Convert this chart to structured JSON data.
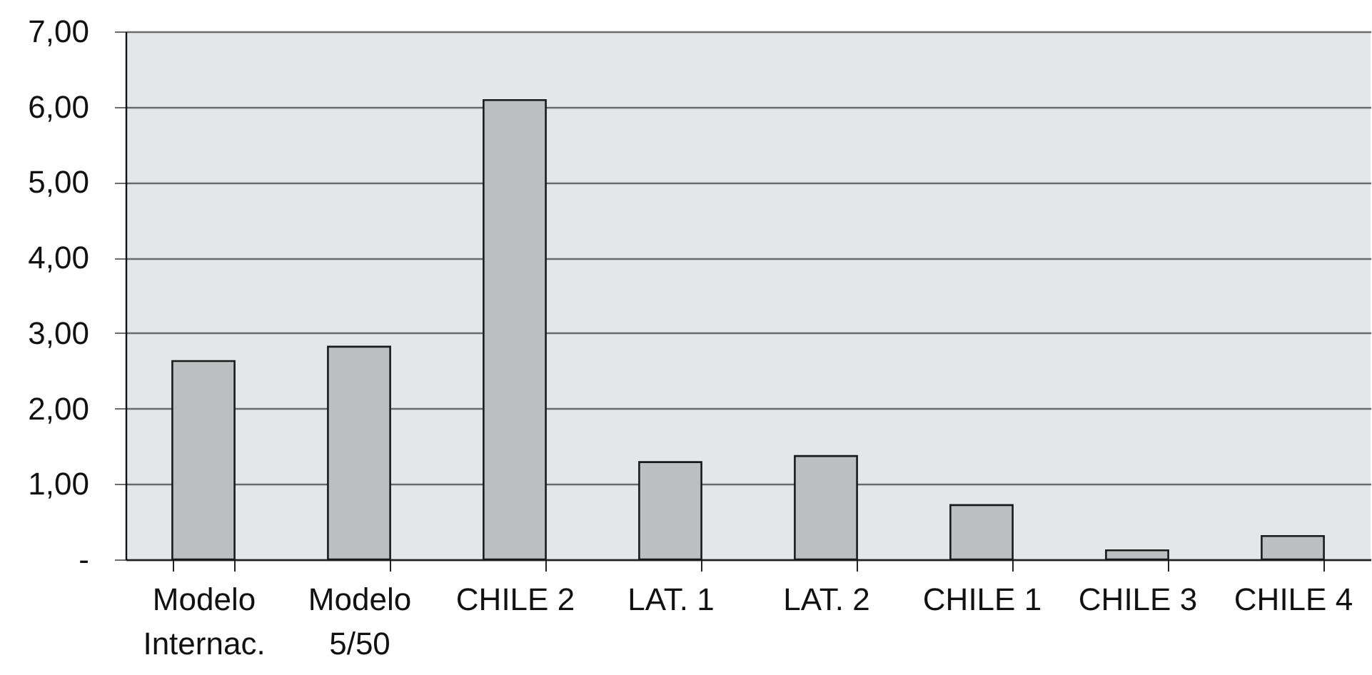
{
  "chart_data": {
    "type": "bar",
    "categories": [
      "Modelo\nInternac.",
      "Modelo\n5/50",
      "CHILE 2",
      "LAT. 1",
      "LAT. 2",
      "CHILE 1",
      "CHILE 3",
      "CHILE 4"
    ],
    "values": [
      2.63,
      2.82,
      6.09,
      1.29,
      1.37,
      0.72,
      0.12,
      0.31
    ],
    "color": "#bdbec1",
    "ylim": [
      0,
      7
    ],
    "yticks": [
      {
        "value": 0,
        "label": "-"
      },
      {
        "value": 1,
        "label": "1,00"
      },
      {
        "value": 2,
        "label": "2,00"
      },
      {
        "value": 3,
        "label": "3,00"
      },
      {
        "value": 4,
        "label": "4,00"
      },
      {
        "value": 5,
        "label": "5,00"
      },
      {
        "value": 6,
        "label": "6,00"
      },
      {
        "value": 7,
        "label": "7,00"
      }
    ],
    "grid": "y"
  }
}
